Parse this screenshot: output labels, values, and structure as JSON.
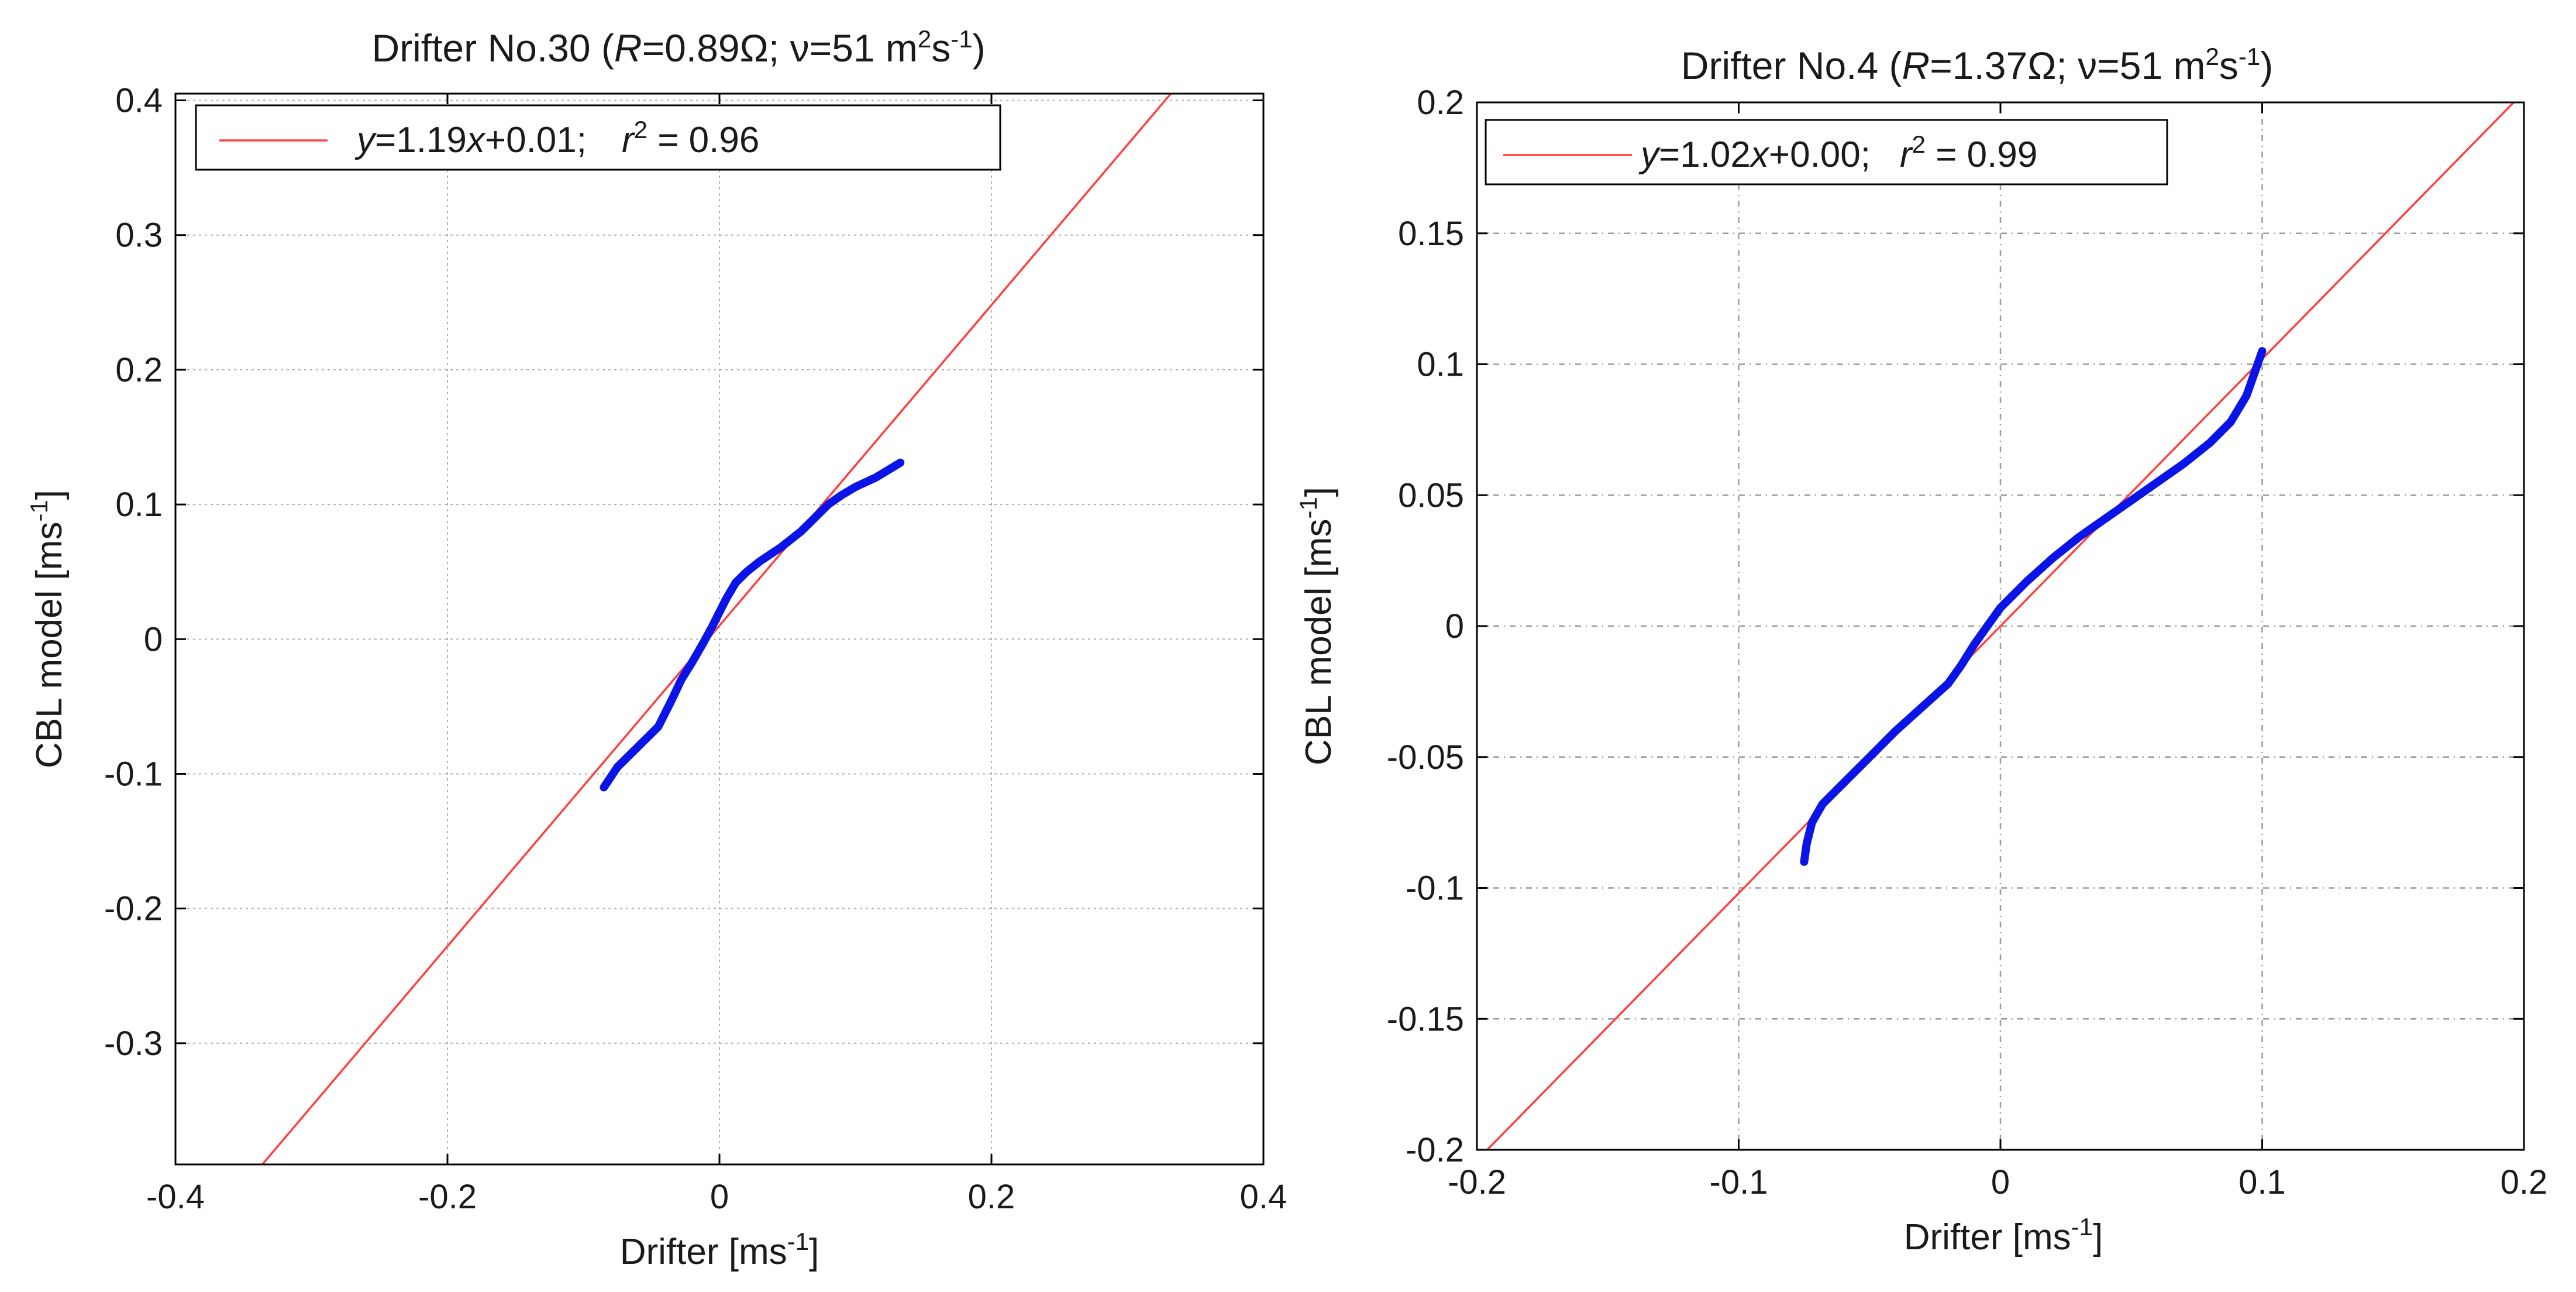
{
  "chart_data": [
    {
      "type": "line",
      "title_prefix": "Drifter No.30 (",
      "title_R_symbol": "R",
      "title_R_value": "=0.89Ω; ν=51 m",
      "title_sup1": "2",
      "title_s": "s",
      "title_sup2": "-1",
      "title_suffix": ")",
      "xlabel": "Drifter [ms",
      "xlabel_sup": "-1",
      "xlabel_end": "]",
      "ylabel": "CBL model [ms",
      "ylabel_sup": "-1",
      "ylabel_end": "]",
      "xlim": [
        -0.4,
        0.4
      ],
      "ylim": [
        -0.39,
        0.405
      ],
      "xticks": [
        -0.4,
        -0.2,
        0,
        0.2,
        0.4
      ],
      "xtick_labels": [
        "-0.4",
        "-0.2",
        "0",
        "0.2",
        "0.4"
      ],
      "yticks": [
        -0.3,
        -0.2,
        -0.1,
        0,
        0.1,
        0.2,
        0.3,
        0.4
      ],
      "ytick_labels": [
        "-0.3",
        "-0.2",
        "-0.1",
        "0",
        "0.1",
        "0.2",
        "0.3",
        "0.4"
      ],
      "grid": true,
      "legend_position": "top-left",
      "legend": {
        "y_var": "y",
        "eq_mid": "=1.19",
        "x_var": "x",
        "eq_end": "+0.01;",
        "r_var": "r",
        "r_sup": "2",
        "r_value": " = 0.96"
      },
      "fit": {
        "slope": 1.19,
        "intercept": 0.01,
        "color": "#ff4040"
      },
      "series": [
        {
          "name": "CBL model vs drifter",
          "color": "#0a14e6",
          "x": [
            -0.085,
            -0.075,
            -0.06,
            -0.045,
            -0.035,
            -0.028,
            -0.02,
            -0.012,
            -0.005,
            0.0,
            0.005,
            0.012,
            0.02,
            0.03,
            0.045,
            0.06,
            0.07,
            0.08,
            0.09,
            0.1,
            0.115,
            0.133
          ],
          "y": [
            -0.11,
            -0.095,
            -0.08,
            -0.065,
            -0.045,
            -0.03,
            -0.017,
            -0.003,
            0.01,
            0.02,
            0.03,
            0.042,
            0.05,
            0.058,
            0.068,
            0.08,
            0.09,
            0.1,
            0.107,
            0.113,
            0.12,
            0.131
          ]
        }
      ]
    },
    {
      "type": "line",
      "title_prefix": "Drifter No.4 (",
      "title_R_symbol": "R",
      "title_R_value": "=1.37Ω; ν=51 m",
      "title_sup1": "2",
      "title_s": "s",
      "title_sup2": "-1",
      "title_suffix": ")",
      "xlabel": "Drifter [ms",
      "xlabel_sup": "-1",
      "xlabel_end": "]",
      "ylabel": "CBL model [ms",
      "ylabel_sup": "-1",
      "ylabel_end": "]",
      "xlim": [
        -0.2,
        0.2
      ],
      "ylim": [
        -0.2,
        0.2
      ],
      "xticks": [
        -0.2,
        -0.1,
        0,
        0.1,
        0.2
      ],
      "xtick_labels": [
        "-0.2",
        "-0.1",
        "0",
        "0.1",
        "0.2"
      ],
      "yticks": [
        -0.2,
        -0.15,
        -0.1,
        -0.05,
        0,
        0.05,
        0.1,
        0.15,
        0.2
      ],
      "ytick_labels": [
        "-0.2",
        "-0.15",
        "-0.1",
        "-0.05",
        "0",
        "0.05",
        "0.1",
        "0.15",
        "0.2"
      ],
      "grid": true,
      "legend_position": "top-left",
      "legend": {
        "y_var": "y",
        "eq_mid": "=1.02",
        "x_var": "x",
        "eq_end": "+0.00;",
        "r_var": "r",
        "r_sup": "2",
        "r_value": " = 0.99"
      },
      "fit": {
        "slope": 1.02,
        "intercept": 0.0,
        "color": "#ff4040"
      },
      "series": [
        {
          "name": "CBL model vs drifter",
          "color": "#0a14e6",
          "x": [
            -0.075,
            -0.074,
            -0.072,
            -0.068,
            -0.06,
            -0.05,
            -0.04,
            -0.03,
            -0.02,
            -0.015,
            -0.01,
            -0.005,
            0.0,
            0.01,
            0.02,
            0.03,
            0.04,
            0.05,
            0.06,
            0.07,
            0.08,
            0.088,
            0.094,
            0.1
          ],
          "y": [
            -0.09,
            -0.083,
            -0.075,
            -0.068,
            -0.06,
            -0.05,
            -0.04,
            -0.031,
            -0.022,
            -0.015,
            -0.007,
            0.0,
            0.007,
            0.017,
            0.026,
            0.034,
            0.041,
            0.048,
            0.055,
            0.062,
            0.07,
            0.078,
            0.088,
            0.105
          ]
        }
      ]
    }
  ]
}
